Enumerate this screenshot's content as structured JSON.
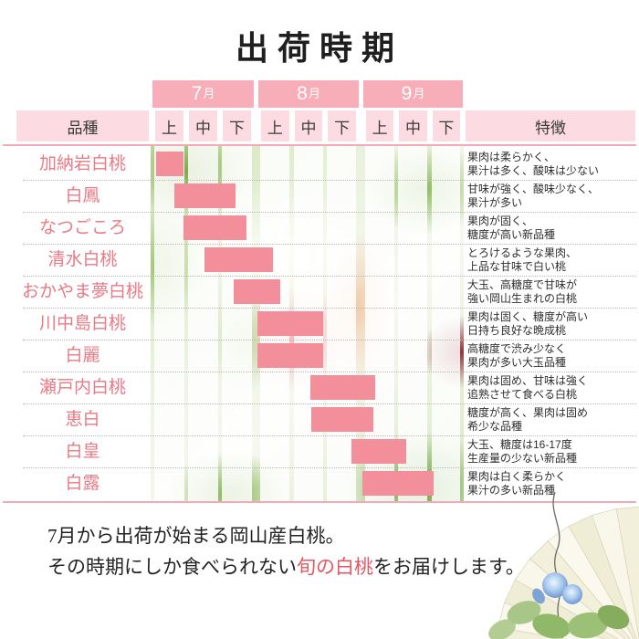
{
  "title": "出荷時期",
  "header": {
    "variety_col": "品種",
    "feature_col": "特徴",
    "months": [
      {
        "num": "7",
        "unit": "月"
      },
      {
        "num": "8",
        "unit": "月"
      },
      {
        "num": "9",
        "unit": "月"
      }
    ],
    "periods": [
      "上",
      "中",
      "下"
    ]
  },
  "chart_data": {
    "type": "table",
    "title": "出荷時期",
    "columns": [
      "品種",
      "7月上",
      "7月中",
      "7月下",
      "8月上",
      "8月中",
      "8月下",
      "9月上",
      "9月中",
      "9月下",
      "特徴"
    ],
    "axis_note": "bar_start/bar_end are in month-third cell units: 0 = start of 7月上, 9 = end of 9月下",
    "rows": [
      {
        "variety": "加納岩白桃",
        "bar_start": 0.1,
        "bar_end": 0.9,
        "period": "7月上旬",
        "feature_lines": [
          "果肉は柔らかく、",
          "果汁は多く、酸味は少ない"
        ]
      },
      {
        "variety": "白鳳",
        "bar_start": 0.63,
        "bar_end": 2.42,
        "period": "7月上旬半ば〜7月下旬",
        "feature_lines": [
          "甘味が強く、酸味少なく、",
          "果汁が多い"
        ]
      },
      {
        "variety": "なつごころ",
        "bar_start": 0.9,
        "bar_end": 2.72,
        "period": "7月中旬〜7月下旬",
        "feature_lines": [
          "果肉が固く、",
          "糖度が高い新品種"
        ]
      },
      {
        "variety": "清水白桃",
        "bar_start": 1.5,
        "bar_end": 3.5,
        "period": "7月中旬半ば〜8月上旬",
        "feature_lines": [
          "とろけるような果肉、",
          "上品な甘味で白い桃"
        ]
      },
      {
        "variety": "おかやま夢白桃",
        "bar_start": 2.35,
        "bar_end": 3.7,
        "period": "7月下旬〜8月上旬",
        "feature_lines": [
          "大玉、高糖度で甘味が",
          "強い岡山生まれの白桃"
        ]
      },
      {
        "variety": "川中島白桃",
        "bar_start": 3.05,
        "bar_end": 4.95,
        "period": "8月上旬〜8月中旬",
        "feature_lines": [
          "果肉は固く、糖度が高い",
          "日持ち良好な晩成桃"
        ]
      },
      {
        "variety": "白麗",
        "bar_start": 3.05,
        "bar_end": 4.95,
        "period": "8月上旬〜8月中旬",
        "feature_lines": [
          "高糖度で渋み少なく",
          "果肉が多い大玉品種"
        ]
      },
      {
        "variety": "瀬戸内白桃",
        "bar_start": 4.58,
        "bar_end": 6.45,
        "period": "8月中旬半ば〜9月上旬",
        "feature_lines": [
          "果肉は固め、甘味は強く",
          "追熟させて食べる白桃"
        ]
      },
      {
        "variety": "恵白",
        "bar_start": 4.6,
        "bar_end": 6.4,
        "period": "8月中旬半ば〜9月上旬",
        "feature_lines": [
          "糖度が高く、果肉は固め",
          "希少な品種"
        ]
      },
      {
        "variety": "白皇",
        "bar_start": 5.77,
        "bar_end": 7.35,
        "period": "8月下旬〜9月中旬",
        "feature_lines": [
          "大玉、糖度は16-17度",
          "生産量の少ない新品種"
        ]
      },
      {
        "variety": "白露",
        "bar_start": 6.08,
        "bar_end": 8.15,
        "period": "9月上旬〜9月中旬",
        "feature_lines": [
          "果肉は白く柔らかく",
          "果汁の多い新品種"
        ]
      }
    ]
  },
  "caption": {
    "line1": "7月から出荷が始まる岡山産白桃。",
    "line2_pre": "その時期にしか食べられない",
    "line2_em": "旬の白桃",
    "line2_post": "をお届けします。"
  },
  "colors": {
    "month_box": "#f8aeb8",
    "subheader_bg": "#fcdce2",
    "rule_pink": "#f4a9b6",
    "bar_pink": "#f28f9b",
    "variety_text": "#e87a86",
    "caption_accent": "#e05964",
    "feature_text": "#2e2e2e"
  }
}
